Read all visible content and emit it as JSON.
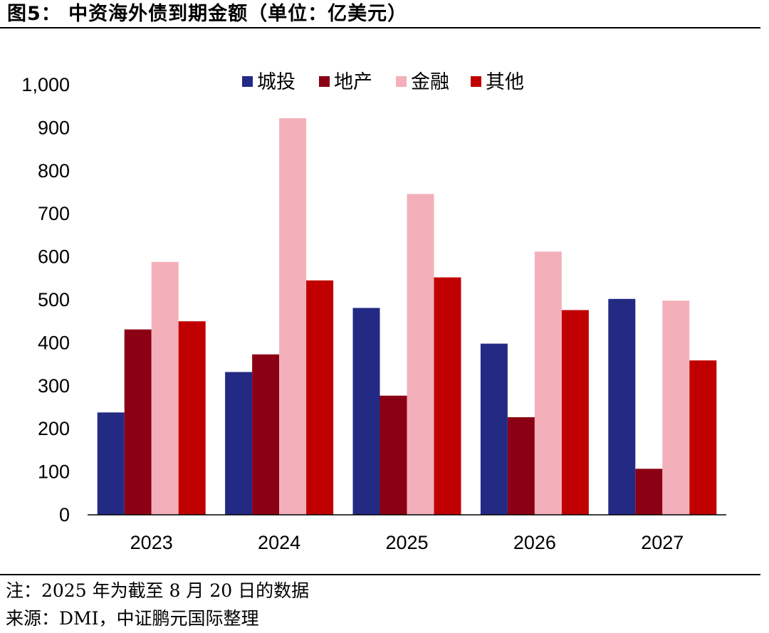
{
  "figure": {
    "title": "图5： 中资海外债到期金额（单位：亿美元）",
    "note": "注：2025 年为截至 8 月 20 日的数据",
    "source": "来源：DMI，中证鹏元国际整理"
  },
  "chart_data": {
    "type": "bar",
    "title": "中资海外债到期金额（单位：亿美元）",
    "categories": [
      "2023",
      "2024",
      "2025",
      "2026",
      "2027"
    ],
    "series": [
      {
        "name": "城投",
        "color": "#232A84",
        "values": [
          238,
          332,
          481,
          398,
          502
        ]
      },
      {
        "name": "地产",
        "color": "#8B0014",
        "values": [
          431,
          373,
          277,
          227,
          107
        ]
      },
      {
        "name": "金融",
        "color": "#F4B0BA",
        "values": [
          588,
          922,
          746,
          612,
          498
        ]
      },
      {
        "name": "其他",
        "color": "#C00000",
        "values": [
          450,
          545,
          552,
          476,
          359
        ]
      }
    ],
    "ylim": [
      0,
      1000
    ],
    "yticks": [
      0,
      100,
      200,
      300,
      400,
      500,
      600,
      700,
      800,
      900,
      1000
    ],
    "ytick_labels": [
      "0",
      "100",
      "200",
      "300",
      "400",
      "500",
      "600",
      "700",
      "800",
      "900",
      "1,000"
    ],
    "grid": false,
    "legend_position": "top"
  }
}
